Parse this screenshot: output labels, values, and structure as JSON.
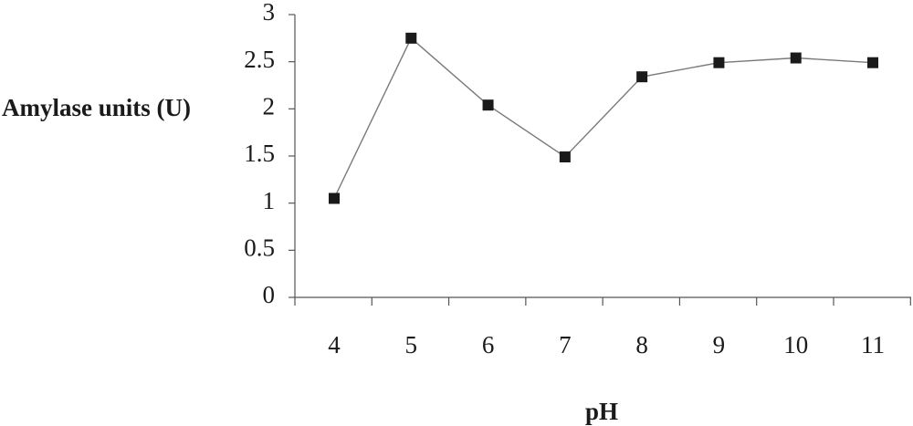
{
  "chart_data": {
    "type": "line",
    "title": "",
    "xlabel": "pH",
    "ylabel": "Amylase units (U)",
    "x": [
      4,
      5,
      6,
      7,
      8,
      9,
      10,
      11
    ],
    "series": [
      {
        "values": [
          1.05,
          2.75,
          2.04,
          1.49,
          2.34,
          2.49,
          2.54,
          2.49
        ]
      }
    ],
    "ylim": [
      0,
      3
    ],
    "yticks": [
      "0",
      "0.5",
      "1",
      "1.5",
      "2",
      "2.5",
      "3"
    ],
    "xticks": [
      "4",
      "5",
      "6",
      "7",
      "8",
      "9",
      "10",
      "11"
    ],
    "grid": false,
    "legend": "none",
    "colors": {
      "line": "#7a7a7a",
      "marker": "#1a1a1a",
      "axis": "#555555"
    },
    "marker": "square"
  }
}
